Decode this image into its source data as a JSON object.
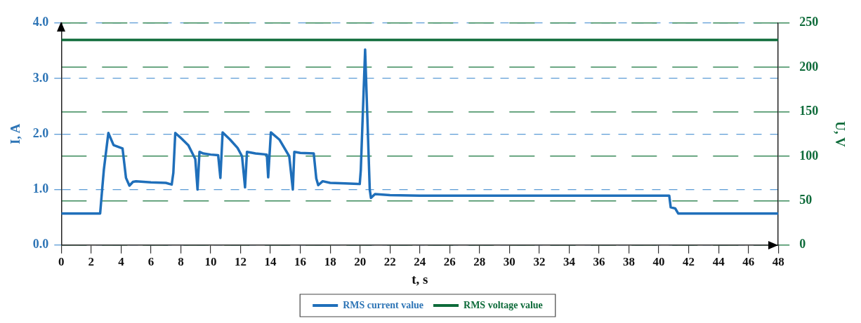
{
  "chart_data": {
    "type": "line",
    "xlabel": "t, s",
    "ylabel": "I, A",
    "y2label": "U, V",
    "xlim": [
      0,
      48
    ],
    "xticks": [
      0,
      2,
      4,
      6,
      8,
      10,
      12,
      14,
      16,
      18,
      20,
      22,
      24,
      26,
      28,
      30,
      32,
      34,
      36,
      38,
      40,
      42,
      44,
      46,
      48
    ],
    "ylim": [
      0,
      4
    ],
    "yticks": [
      {
        "value": 0,
        "label": "0.0"
      },
      {
        "value": 1,
        "label": "1.0"
      },
      {
        "value": 2,
        "label": "2.0"
      },
      {
        "value": 3,
        "label": "3.0"
      },
      {
        "value": 4,
        "label": "4.0"
      }
    ],
    "y2lim": [
      0,
      250
    ],
    "y2ticks": [
      0,
      50,
      100,
      150,
      200,
      250
    ],
    "grid": "y",
    "legend": "bottom",
    "marker": "none",
    "line_style": "solid",
    "series": [
      {
        "name": "RMS current value",
        "color": "#1f6fba",
        "x": [
          0,
          2.6,
          2.75,
          2.85,
          3.15,
          3.5,
          4.1,
          4.33,
          4.56,
          4.8,
          5,
          6,
          7,
          7.39,
          7.5,
          7.63,
          8,
          8.5,
          8.97,
          9.12,
          9.25,
          9.5,
          10,
          10.5,
          10.65,
          10.8,
          11.3,
          11.8,
          12.1,
          12.3,
          12.43,
          13,
          13.76,
          13.85,
          14.03,
          14.6,
          15.26,
          15.5,
          15.6,
          16,
          16.9,
          17.07,
          17.2,
          17.5,
          18,
          19,
          19.98,
          20.05,
          20.34,
          20.65,
          20.73,
          21,
          22,
          24,
          30,
          36,
          40.7,
          40.8,
          41.1,
          41.3,
          48
        ],
        "values": [
          0.57,
          0.57,
          1.05,
          1.36,
          2.02,
          1.8,
          1.74,
          1.21,
          1.07,
          1.14,
          1.15,
          1.13,
          1.12,
          1.09,
          1.3,
          2.02,
          1.93,
          1.8,
          1.55,
          1.0,
          1.68,
          1.65,
          1.63,
          1.62,
          1.21,
          2.03,
          1.9,
          1.75,
          1.6,
          1.04,
          1.68,
          1.65,
          1.63,
          1.22,
          2.03,
          1.9,
          1.6,
          1.0,
          1.68,
          1.66,
          1.65,
          1.2,
          1.08,
          1.15,
          1.12,
          1.11,
          1.1,
          1.35,
          3.52,
          1.0,
          0.85,
          0.92,
          0.9,
          0.89,
          0.89,
          0.89,
          0.89,
          0.68,
          0.66,
          0.57,
          0.57
        ]
      },
      {
        "name": "RMS voltage value",
        "color": "#0e6b3a",
        "axis": "y2",
        "x": [
          0,
          8,
          16,
          24,
          32,
          40,
          48
        ],
        "values": [
          231,
          231,
          231,
          231,
          231,
          231,
          231
        ]
      }
    ]
  }
}
